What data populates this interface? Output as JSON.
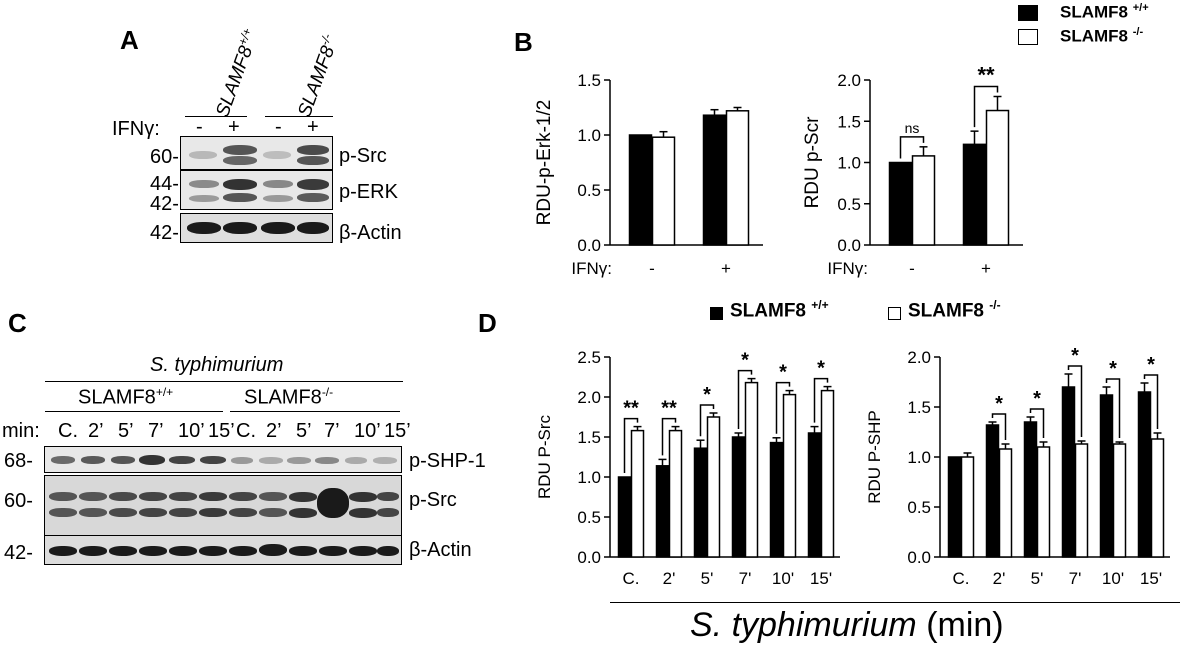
{
  "panels": {
    "A": "A",
    "B": "B",
    "C": "C",
    "D": "D"
  },
  "panelA": {
    "groups": [
      "SLAMF8",
      "SLAMF8"
    ],
    "group_sup": [
      "+/+",
      "-/-"
    ],
    "ifn_label": "IFNγ:",
    "treatments": [
      "-",
      "+",
      "-",
      "+"
    ],
    "markers": [
      "60-",
      "44-",
      "42-",
      "42-"
    ],
    "proteins": [
      "p-Src",
      "p-ERK",
      "β-Actin"
    ]
  },
  "panelC": {
    "title": "S. typhimurium",
    "groups": [
      "SLAMF8",
      "SLAMF8"
    ],
    "group_sup": [
      "+/+",
      "-/-"
    ],
    "min_label": "min:",
    "times": [
      "C.",
      "2’",
      "5’",
      "7’",
      "10’",
      "15’",
      "C.",
      "2’",
      "5’",
      "7’",
      "10’",
      "15’"
    ],
    "markers": [
      "68-",
      "60-",
      "42-"
    ],
    "proteins": [
      "p-SHP-1",
      "p-Src",
      "β-Actin"
    ]
  },
  "legendB": {
    "items": [
      {
        "name": "SLAMF8",
        "sup": "+/+",
        "color": "#000000"
      },
      {
        "name": "SLAMF8",
        "sup": "-/-",
        "color": "#ffffff"
      }
    ]
  },
  "legendD": {
    "items": [
      {
        "name": "SLAMF8",
        "sup": "+/+",
        "color": "#000000"
      },
      {
        "name": "SLAMF8",
        "sup": "-/-",
        "color": "#ffffff"
      }
    ]
  },
  "xaxisD": {
    "italic": "S. typhimurium",
    "unit": "(min)"
  },
  "chart_data": [
    {
      "type": "bar",
      "panel": "B",
      "ylabel": "RDU-p-Erk-1/2",
      "xlabel": "IFNγ:",
      "categories": [
        "-",
        "+"
      ],
      "ylim": [
        0,
        1.5
      ],
      "yticks": [
        "0.0",
        "0.5",
        "1.0",
        "1.5"
      ],
      "series": [
        {
          "name": "SLAMF8 +/+",
          "values": [
            1.0,
            1.18
          ],
          "errors": [
            0.0,
            0.05
          ]
        },
        {
          "name": "SLAMF8 -/-",
          "values": [
            0.98,
            1.22
          ],
          "errors": [
            0.05,
            0.03
          ]
        }
      ],
      "significance": []
    },
    {
      "type": "bar",
      "panel": "B",
      "ylabel": "RDU p-Scr",
      "xlabel": "IFNγ:",
      "categories": [
        "-",
        "+"
      ],
      "ylim": [
        0,
        2.0
      ],
      "yticks": [
        "0.0",
        "0.5",
        "1.0",
        "1.5",
        "2.0"
      ],
      "series": [
        {
          "name": "SLAMF8 +/+",
          "values": [
            1.0,
            1.22
          ],
          "errors": [
            0.0,
            0.16
          ]
        },
        {
          "name": "SLAMF8 -/-",
          "values": [
            1.08,
            1.63
          ],
          "errors": [
            0.11,
            0.17
          ]
        }
      ],
      "significance": [
        "ns",
        "**"
      ]
    },
    {
      "type": "bar",
      "panel": "D",
      "ylabel": "RDU P-Src",
      "categories": [
        "C.",
        "2'",
        "5'",
        "7'",
        "10'",
        "15'"
      ],
      "ylim": [
        0,
        2.5
      ],
      "yticks": [
        "0.0",
        "0.5",
        "1.0",
        "1.5",
        "2.0",
        "2.5"
      ],
      "series": [
        {
          "name": "SLAMF8 +/+",
          "values": [
            1.0,
            1.14,
            1.36,
            1.5,
            1.43,
            1.55
          ],
          "errors": [
            0.0,
            0.08,
            0.1,
            0.05,
            0.06,
            0.08
          ]
        },
        {
          "name": "SLAMF8 -/-",
          "values": [
            1.58,
            1.58,
            1.75,
            2.18,
            2.03,
            2.08
          ],
          "errors": [
            0.05,
            0.05,
            0.05,
            0.05,
            0.05,
            0.05
          ]
        }
      ],
      "significance": [
        "**",
        "**",
        "*",
        "*",
        "*",
        "*"
      ]
    },
    {
      "type": "bar",
      "panel": "D",
      "ylabel": "RDU P-SHP",
      "categories": [
        "C.",
        "2'",
        "5'",
        "7'",
        "10'",
        "15'"
      ],
      "ylim": [
        0,
        2.0
      ],
      "yticks": [
        "0.0",
        "0.5",
        "1.0",
        "1.5",
        "2.0"
      ],
      "series": [
        {
          "name": "SLAMF8 +/+",
          "values": [
            1.0,
            1.32,
            1.35,
            1.7,
            1.62,
            1.65
          ],
          "errors": [
            0.0,
            0.03,
            0.05,
            0.13,
            0.08,
            0.09
          ]
        },
        {
          "name": "SLAMF8 -/-",
          "values": [
            1.0,
            1.08,
            1.1,
            1.13,
            1.13,
            1.18
          ],
          "errors": [
            0.04,
            0.05,
            0.05,
            0.03,
            0.02,
            0.06
          ]
        }
      ],
      "significance": [
        "",
        "*",
        "*",
        "*",
        "*",
        "*"
      ]
    }
  ]
}
